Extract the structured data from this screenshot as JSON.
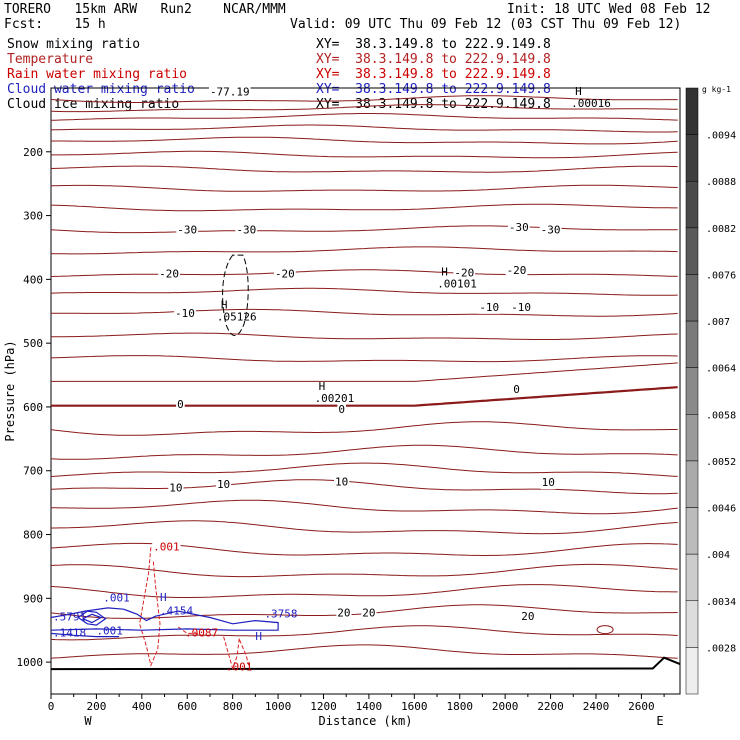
{
  "header": {
    "model": "TORERO   15km ARW   Run2    NCAR/MMM",
    "init": "Init: 18 UTC Wed 08 Feb 12",
    "fcst": "Fcst:    15 h",
    "valid": "Valid: 09 UTC Thu 09 Feb 12 (03 CST Thu 09 Feb 12)"
  },
  "fields": [
    {
      "name": "Snow mixing ratio",
      "color": "#000000",
      "xy": "XY=  38.3.149.8 to 222.9.149.8",
      "xy_color": "#000000"
    },
    {
      "name": "Temperature",
      "color": "#b22222",
      "xy": "XY=  38.3.149.8 to 222.9.149.8",
      "xy_color": "#b22222"
    },
    {
      "name": "Rain water mixing ratio",
      "color": "#cc0000",
      "xy": "XY=  38.3.149.8 to 222.9.149.8",
      "xy_color": "#cc0000"
    },
    {
      "name": "Cloud water mixing ratio",
      "color": "#1f1fbf",
      "xy": "XY=  38.3.149.8 to 222.9.149.8",
      "xy_color": "#1f1fbf"
    },
    {
      "name": "Cloud ice mixing ratio",
      "color": "#000000",
      "xy": "XY=  38.3.149.8 to 222.9.149.8",
      "xy_color": "#000000"
    }
  ],
  "chart_data": {
    "type": "contour",
    "xlabel": "Distance (km)",
    "ylabel": "Pressure (hPa)",
    "x_ticks": [
      0,
      200,
      400,
      600,
      800,
      1000,
      1200,
      1400,
      1600,
      1800,
      2000,
      2200,
      2400,
      2600
    ],
    "y_ticks": [
      200,
      300,
      400,
      500,
      600,
      700,
      800,
      900,
      1000
    ],
    "xlim": [
      0,
      2770
    ],
    "ylim": [
      1050,
      100
    ],
    "x_end_labels": {
      "left": "W",
      "right": "E"
    },
    "temperature_isotherms": [
      {
        "label": "-30",
        "positions": [
          [
            600,
            322
          ],
          [
            860,
            322
          ],
          [
            2060,
            318
          ],
          [
            2200,
            322
          ]
        ]
      },
      {
        "label": "-20",
        "positions": [
          [
            520,
            391
          ],
          [
            1030,
            391
          ],
          [
            1820,
            389
          ],
          [
            2050,
            385
          ]
        ]
      },
      {
        "label": "-10",
        "positions": [
          [
            590,
            453
          ],
          [
            1930,
            443
          ],
          [
            2070,
            443
          ]
        ]
      },
      {
        "label": "0",
        "positions": [
          [
            570,
            595
          ],
          [
            1280,
            603
          ],
          [
            2050,
            572
          ]
        ]
      },
      {
        "label": "10",
        "positions": [
          [
            550,
            726
          ],
          [
            760,
            721
          ],
          [
            1280,
            717
          ],
          [
            2190,
            718
          ]
        ]
      },
      {
        "label": "20",
        "positions": [
          [
            1290,
            922
          ],
          [
            1400,
            922
          ],
          [
            2100,
            928
          ]
        ]
      }
    ],
    "ice_max_labels": [
      {
        "label": ".05126",
        "x": 810,
        "p": 455
      },
      {
        "label": ".00101",
        "x": 1780,
        "p": 403
      },
      {
        "label": ".00201",
        "x": 1240,
        "p": 583
      },
      {
        "label": ".00016",
        "x": 2370,
        "p": 120
      }
    ],
    "top_label": "-77.19",
    "cloud_water_labels": [
      ".001",
      ".4154",
      ".001",
      ".3758",
      ".5791",
      ".1418"
    ],
    "rain_labels": [
      ".001",
      ".001",
      ".0087"
    ],
    "colorbar": {
      "unit": "g kg-1",
      "ticks": [
        ".0094",
        ".0088",
        ".0082",
        ".0076",
        ".007",
        ".0064",
        ".0058",
        ".0052",
        ".0046",
        ".004",
        ".0034",
        ".0028"
      ],
      "colors": [
        "#333333",
        "#3e3e3e",
        "#4a4a4a",
        "#5a5a5a",
        "#6a6a6a",
        "#7a7a7a",
        "#8a8a8a",
        "#9a9a9a",
        "#aaaaaa",
        "#bbbbbb",
        "#cccccc",
        "#dddddd",
        "#eeeeee"
      ]
    }
  }
}
